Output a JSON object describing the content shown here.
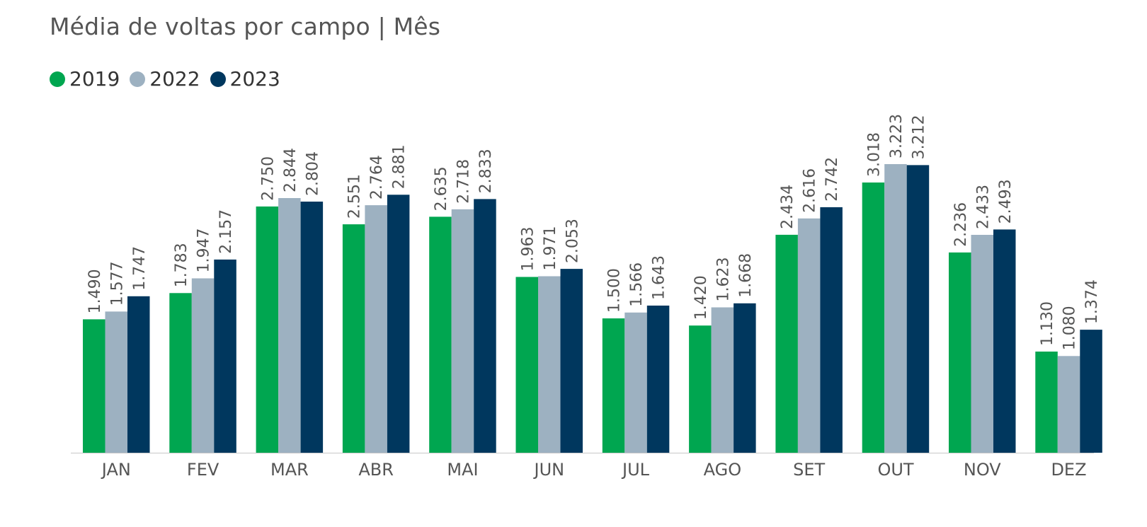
{
  "chart_data": {
    "type": "bar",
    "title": "Média de voltas por campo | Mês",
    "xlabel": "",
    "ylabel": "",
    "ylim": [
      0,
      3223
    ],
    "grid": false,
    "legend_position": "top-left",
    "categories": [
      "JAN",
      "FEV",
      "MAR",
      "ABR",
      "MAI",
      "JUN",
      "JUL",
      "AGO",
      "SET",
      "OUT",
      "NOV",
      "DEZ"
    ],
    "series": [
      {
        "name": "2019",
        "color": "#00A650",
        "values": [
          1490,
          1783,
          2750,
          2551,
          2635,
          1963,
          1500,
          1420,
          2434,
          3018,
          2236,
          1130
        ],
        "labels": [
          "1.490",
          "1.783",
          "2.750",
          "2.551",
          "2.635",
          "1.963",
          "1.500",
          "1.420",
          "2.434",
          "3.018",
          "2.236",
          "1.130"
        ]
      },
      {
        "name": "2022",
        "color": "#9DB1C1",
        "values": [
          1577,
          1947,
          2844,
          2764,
          2718,
          1971,
          1566,
          1623,
          2616,
          3223,
          2433,
          1080
        ],
        "labels": [
          "1.577",
          "1.947",
          "2.844",
          "2.764",
          "2.718",
          "1.971",
          "1.566",
          "1.623",
          "2.616",
          "3.223",
          "2.433",
          "1.080"
        ]
      },
      {
        "name": "2023",
        "color": "#00375E",
        "values": [
          1747,
          2157,
          2804,
          2881,
          2833,
          2053,
          1643,
          1668,
          2742,
          3212,
          2493,
          1374
        ],
        "labels": [
          "1.747",
          "2.157",
          "2.804",
          "2.881",
          "2.833",
          "2.053",
          "1.643",
          "1.668",
          "2.742",
          "3.212",
          "2.493",
          "1.374"
        ]
      }
    ]
  },
  "colors": {
    "axis_line": "#C8C8C8",
    "label_text": "#555555"
  }
}
